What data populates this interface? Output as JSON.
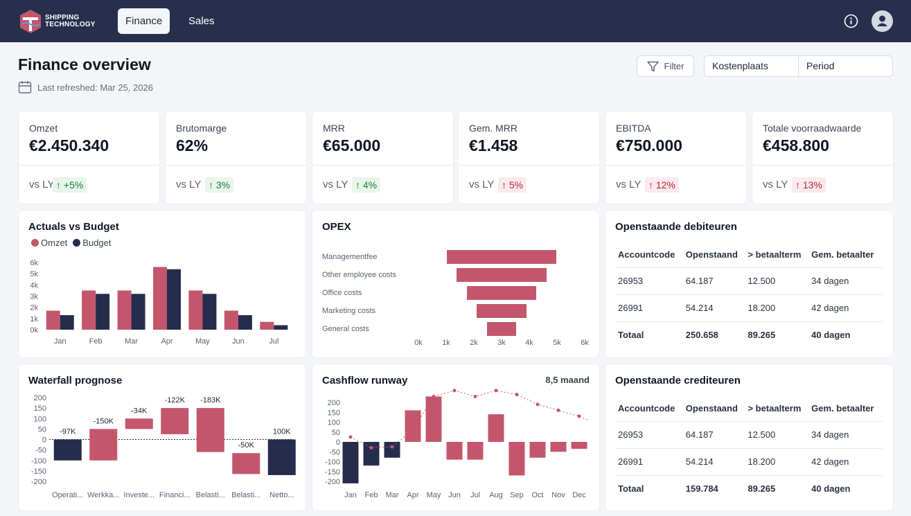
{
  "brand": {
    "line1": "SHIPPING",
    "line2": "TECHNOLOGY"
  },
  "nav": {
    "tabs": [
      {
        "label": "Finance",
        "active": true
      },
      {
        "label": "Sales",
        "active": false
      }
    ]
  },
  "header": {
    "title": "Finance overview",
    "last_refreshed": "Last refreshed: Mar 25, 2026",
    "filter_label": "Filter",
    "select_cost_center": "Kostenplaats",
    "select_period": "Period"
  },
  "kpis": [
    {
      "label": "Omzet",
      "value": "€2.450.340",
      "vs": "vs LY",
      "change": "↑ +5%",
      "status": "good"
    },
    {
      "label": "Brutomarge",
      "value": "62%",
      "vs": "vs LY",
      "change": "↑ 3%",
      "status": "good"
    },
    {
      "label": "MRR",
      "value": "€65.000",
      "vs": "vs LY",
      "change": "↑ 4%",
      "status": "good"
    },
    {
      "label": "Gem. MRR",
      "value": "€1.458",
      "vs": "vs LY",
      "change": "↑ 5%",
      "status": "bad"
    },
    {
      "label": "EBITDA",
      "value": "€750.000",
      "vs": "vs LY",
      "change": "↑ 12%",
      "status": "bad"
    },
    {
      "label": "Totale voorraadwaarde",
      "value": "€458.800",
      "vs": "vs LY",
      "change": "↑ 13%",
      "status": "bad"
    }
  ],
  "colors": {
    "brand": "#272f4d",
    "accent": "#c4566c",
    "dark": "#262c4c",
    "good": "#1f7a38",
    "bad": "#b1283f"
  },
  "actuals_vs_budget": {
    "title": "Actuals vs Budget",
    "legend": [
      "Omzet",
      "Budget"
    ]
  },
  "opex": {
    "title": "OPEX"
  },
  "cashflow": {
    "title": "Cashflow runway",
    "runway": "8,5 maand"
  },
  "waterfall": {
    "title": "Waterfall prognose"
  },
  "debiteuren": {
    "title": "Openstaande debiteuren",
    "columns": [
      "Accountcode",
      "Openstaand",
      "> betaalterm",
      "Gem. betaalter"
    ],
    "rows": [
      [
        "26953",
        "64.187",
        "12.500",
        "34 dagen"
      ],
      [
        "26991",
        "54.214",
        "18.200",
        "42 dagen"
      ]
    ],
    "total": [
      "Totaal",
      "250.658",
      "89.265",
      "40 dagen"
    ]
  },
  "crediteuren": {
    "title": "Openstaande crediteuren",
    "columns": [
      "Accountcode",
      "Openstaand",
      "> betaalterm",
      "Gem. betaalter"
    ],
    "rows": [
      [
        "26953",
        "64.187",
        "12.500",
        "34 dagen"
      ],
      [
        "26991",
        "54.214",
        "18.200",
        "42 dagen"
      ]
    ],
    "total": [
      "Totaal",
      "159.784",
      "89.265",
      "40 dagen"
    ]
  },
  "chart_data": [
    {
      "type": "bar",
      "title": "Actuals vs Budget",
      "categories": [
        "Jan",
        "Feb",
        "Mar",
        "Apr",
        "May",
        "Jun",
        "Jul"
      ],
      "series": [
        {
          "name": "Omzet",
          "values": [
            1700,
            3500,
            3500,
            5600,
            3500,
            1700,
            700
          ]
        },
        {
          "name": "Budget",
          "values": [
            1300,
            3200,
            3200,
            5400,
            3200,
            1300,
            400
          ]
        }
      ],
      "yticks": [
        "0k",
        "1k",
        "2k",
        "3k",
        "4k",
        "5k",
        "6k"
      ],
      "ylim": [
        0,
        6000
      ]
    },
    {
      "type": "bar",
      "title": "OPEX",
      "orientation": "horizontal-funnel",
      "categories": [
        "Managementfee",
        "Other employee costs",
        "Office costs",
        "Marketing costs",
        "General costs"
      ],
      "values": [
        3950,
        3250,
        2500,
        1800,
        1050
      ],
      "xticks": [
        "0k",
        "1k",
        "2k",
        "3k",
        "4k",
        "5k",
        "6k"
      ],
      "xlim": [
        0,
        6000
      ]
    },
    {
      "type": "bar",
      "title": "Waterfall prognose",
      "categories": [
        "Operati...",
        "Werkka...",
        "Investe...",
        "Financi...",
        "Belasti...",
        "Belasti...",
        "Netto..."
      ],
      "ranges": [
        [
          -100,
          0
        ],
        [
          -100,
          50
        ],
        [
          50,
          100
        ],
        [
          25,
          150
        ],
        [
          -60,
          150
        ],
        [
          -165,
          -65
        ],
        [
          -170,
          0
        ]
      ],
      "labels": [
        "-97K",
        "-150K",
        "-34K",
        "-122K",
        "-183K",
        "-50K",
        "100K"
      ],
      "kinds": [
        "total",
        "delta",
        "delta",
        "delta",
        "delta",
        "delta",
        "total"
      ],
      "yticks": [
        200,
        150,
        100,
        50,
        0,
        -50,
        -100,
        -150,
        -200
      ],
      "ylim": [
        -200,
        200
      ]
    },
    {
      "type": "bar",
      "title": "Cashflow runway",
      "categories": [
        "Jan",
        "Feb",
        "Mar",
        "Apr",
        "May",
        "Jun",
        "Jul",
        "Aug",
        "Sep",
        "Oct",
        "Nov",
        "Dec"
      ],
      "values": [
        -210,
        -120,
        -80,
        160,
        230,
        -90,
        -90,
        140,
        -170,
        -80,
        -50,
        -35
      ],
      "line": [
        25,
        -30,
        -25,
        60,
        230,
        260,
        230,
        260,
        240,
        190,
        160,
        130
      ],
      "yticks": [
        200,
        150,
        100,
        50,
        0,
        -50,
        -100,
        -150,
        -200
      ],
      "ylim": [
        -200,
        250
      ]
    }
  ]
}
